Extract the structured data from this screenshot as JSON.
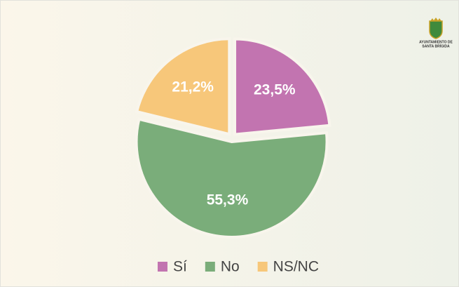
{
  "chart_data": {
    "type": "pie",
    "categories": [
      "Sí",
      "No",
      "NS/NC"
    ],
    "values": [
      23.5,
      55.3,
      21.2
    ],
    "value_labels": [
      "23,5%",
      "55,3%",
      "21,2%"
    ],
    "colors": [
      "#c274b0",
      "#7aad7a",
      "#f7c77a"
    ],
    "legend": "bottom"
  },
  "logo": {
    "line1": "AYUNTAMIENTO DE",
    "line2": "SANTA BRÍGIDA"
  }
}
